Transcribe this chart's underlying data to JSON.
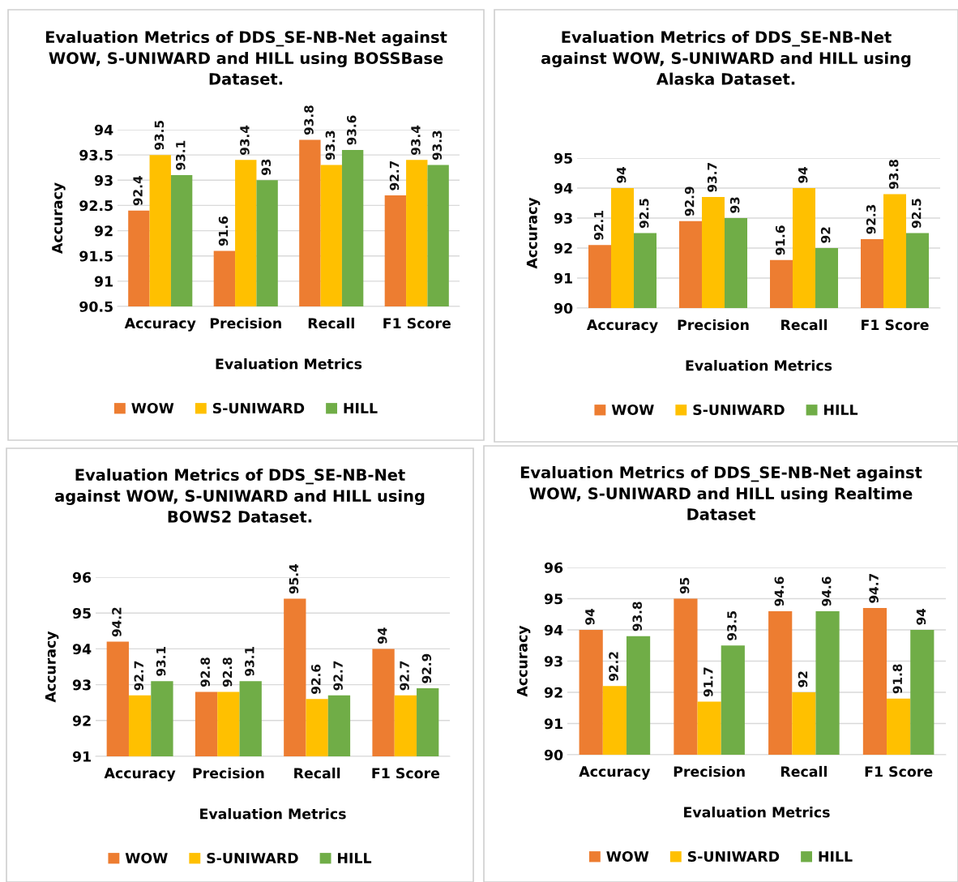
{
  "chart_data": [
    {
      "type": "bar",
      "title": "Evaluation Metrics of DDS_SE-NB-Net against\nWOW, S-UNIWARD and HILL using BOSSBase\nDataset.",
      "xlabel": "Evaluation Metrics",
      "ylabel": "Accuracy",
      "categories": [
        "Accuracy",
        "Precision",
        "Recall",
        "F1 Score"
      ],
      "ylim": [
        90.5,
        94
      ],
      "yticks": [
        90.5,
        91,
        91.5,
        92,
        92.5,
        93,
        93.5,
        94
      ],
      "grid": "y",
      "legend": "bottom",
      "data_labels": true,
      "series": [
        {
          "name": "WOW",
          "color": "#ed7d31",
          "values": [
            92.4,
            91.6,
            93.8,
            92.7
          ]
        },
        {
          "name": "S-UNIWARD",
          "color": "#ffc000",
          "values": [
            93.5,
            93.4,
            93.3,
            93.4
          ]
        },
        {
          "name": "HILL",
          "color": "#70ad47",
          "values": [
            93.1,
            93,
            93.6,
            93.3
          ]
        }
      ]
    },
    {
      "type": "bar",
      "title": "Evaluation Metrics of DDS_SE-NB-Net\nagainst WOW, S-UNIWARD and HILL using\nAlaska Dataset.",
      "xlabel": "Evaluation Metrics",
      "ylabel": "Accuracy",
      "categories": [
        "Accuracy",
        "Precision",
        "Recall",
        "F1 Score"
      ],
      "ylim": [
        90,
        95
      ],
      "yticks": [
        90,
        91,
        92,
        93,
        94,
        95
      ],
      "grid": "y",
      "legend": "bottom",
      "data_labels": true,
      "series": [
        {
          "name": "WOW",
          "color": "#ed7d31",
          "values": [
            92.1,
            92.9,
            91.6,
            92.3
          ]
        },
        {
          "name": "S-UNIWARD",
          "color": "#ffc000",
          "values": [
            94,
            93.7,
            94,
            93.8
          ]
        },
        {
          "name": "HILL",
          "color": "#70ad47",
          "values": [
            92.5,
            93,
            92,
            92.5
          ]
        }
      ]
    },
    {
      "type": "bar",
      "title": "Evaluation Metrics of DDS_SE-NB-Net\nagainst WOW, S-UNIWARD and HILL using\nBOWS2 Dataset.",
      "xlabel": "Evaluation Metrics",
      "ylabel": "Accuracy",
      "categories": [
        "Accuracy",
        "Precision",
        "Recall",
        "F1 Score"
      ],
      "ylim": [
        91,
        96
      ],
      "yticks": [
        91,
        92,
        93,
        94,
        95,
        96
      ],
      "grid": "y",
      "legend": "bottom",
      "data_labels": true,
      "series": [
        {
          "name": "WOW",
          "color": "#ed7d31",
          "values": [
            94.2,
            92.8,
            95.4,
            94
          ]
        },
        {
          "name": "S-UNIWARD",
          "color": "#ffc000",
          "values": [
            92.7,
            92.8,
            92.6,
            92.7
          ]
        },
        {
          "name": "HILL",
          "color": "#70ad47",
          "values": [
            93.1,
            93.1,
            92.7,
            92.9
          ]
        }
      ]
    },
    {
      "type": "bar",
      "title": "Evaluation Metrics of DDS_SE-NB-Net against\nWOW, S-UNIWARD and HILL using Realtime\nDataset",
      "xlabel": "Evaluation Metrics",
      "ylabel": "Accuracy",
      "categories": [
        "Accuracy",
        "Precision",
        "Recall",
        "F1 Score"
      ],
      "ylim": [
        90,
        96
      ],
      "yticks": [
        90,
        91,
        92,
        93,
        94,
        95,
        96
      ],
      "grid": "y",
      "legend": "bottom",
      "data_labels": true,
      "series": [
        {
          "name": "WOW",
          "color": "#ed7d31",
          "values": [
            94,
            95,
            94.6,
            94.7
          ]
        },
        {
          "name": "S-UNIWARD",
          "color": "#ffc000",
          "values": [
            92.2,
            91.7,
            92,
            91.8
          ]
        },
        {
          "name": "HILL",
          "color": "#70ad47",
          "values": [
            93.8,
            93.5,
            94.6,
            94
          ]
        }
      ]
    }
  ]
}
